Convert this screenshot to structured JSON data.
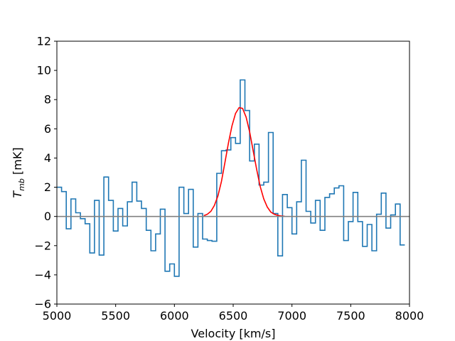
{
  "chart_data": {
    "type": "line",
    "title": "",
    "xlabel": "Velocity [km/s]",
    "ylabel_main": "T",
    "ylabel_sub": "mb",
    "ylabel_unit": " [mK]",
    "xlim": [
      5000,
      8000
    ],
    "ylim": [
      -6,
      12
    ],
    "grid": false,
    "legend": "none",
    "x_ticks": [
      5000,
      5500,
      6000,
      6500,
      7000,
      7500,
      8000
    ],
    "y_ticks": [
      -6,
      -4,
      -2,
      0,
      2,
      4,
      6,
      8,
      10,
      12
    ],
    "x_tick_labels": [
      "5000",
      "5500",
      "6000",
      "6500",
      "7000",
      "7500",
      "8000"
    ],
    "y_tick_labels": [
      "−6",
      "−4",
      "−2",
      "0",
      "2",
      "4",
      "6",
      "8",
      "10",
      "12"
    ],
    "series": [
      {
        "style": "steps",
        "color": "#1f77b4",
        "bin_edges": [
          5000,
          5040,
          5080,
          5120,
          5160,
          5200,
          5240,
          5280,
          5320,
          5360,
          5400,
          5440,
          5480,
          5520,
          5560,
          5600,
          5640,
          5680,
          5720,
          5760,
          5800,
          5840,
          5880,
          5920,
          5960,
          6000,
          6040,
          6080,
          6120,
          6160,
          6200,
          6240,
          6280,
          6320,
          6360,
          6400,
          6440,
          6480,
          6520,
          6560,
          6600,
          6640,
          6680,
          6720,
          6760,
          6800,
          6840,
          6880,
          6920,
          6960,
          7000,
          7040,
          7080,
          7120,
          7160,
          7200,
          7240,
          7280,
          7320,
          7360,
          7400,
          7440,
          7480,
          7520,
          7560,
          7600,
          7640,
          7680,
          7720,
          7760,
          7800,
          7840,
          7880,
          7920,
          7960
        ],
        "values": [
          2.0,
          1.7,
          -0.85,
          1.2,
          0.25,
          -0.15,
          -0.5,
          -2.5,
          1.1,
          -2.65,
          2.7,
          1.1,
          -1.0,
          0.55,
          -0.65,
          1.0,
          2.35,
          1.05,
          0.55,
          -0.95,
          -2.35,
          -1.2,
          0.5,
          -3.75,
          -3.25,
          -4.1,
          2.0,
          0.2,
          1.85,
          -2.1,
          0.2,
          -1.55,
          -1.65,
          -1.7,
          2.95,
          4.5,
          4.55,
          5.4,
          5.0,
          9.35,
          7.25,
          3.8,
          4.95,
          2.15,
          2.35,
          5.75,
          0.2,
          -2.7,
          1.5,
          0.6,
          -1.2,
          1.0,
          3.85,
          0.35,
          -0.45,
          1.1,
          -0.95,
          1.3,
          1.55,
          1.95,
          2.1,
          -1.65,
          -0.35,
          1.65,
          -0.35,
          -2.05,
          -0.55,
          -2.35,
          0.15,
          1.6,
          -0.8,
          0.1,
          0.85,
          -1.95
        ]
      },
      {
        "style": "line",
        "color": "#ff0000",
        "x": [
          6250,
          6280,
          6310,
          6340,
          6370,
          6400,
          6430,
          6460,
          6490,
          6520,
          6550,
          6580,
          6610,
          6640,
          6670,
          6700,
          6730,
          6760,
          6790,
          6820,
          6850,
          6880,
          6910,
          6940
        ],
        "y": [
          0.05,
          0.15,
          0.35,
          0.75,
          1.4,
          2.4,
          3.7,
          5.05,
          6.2,
          7.05,
          7.45,
          7.4,
          6.8,
          5.8,
          4.5,
          3.2,
          2.05,
          1.2,
          0.65,
          0.3,
          0.15,
          0.07,
          0.03,
          0.01
        ]
      },
      {
        "style": "hline",
        "color": "#808080",
        "y": 0
      }
    ]
  }
}
